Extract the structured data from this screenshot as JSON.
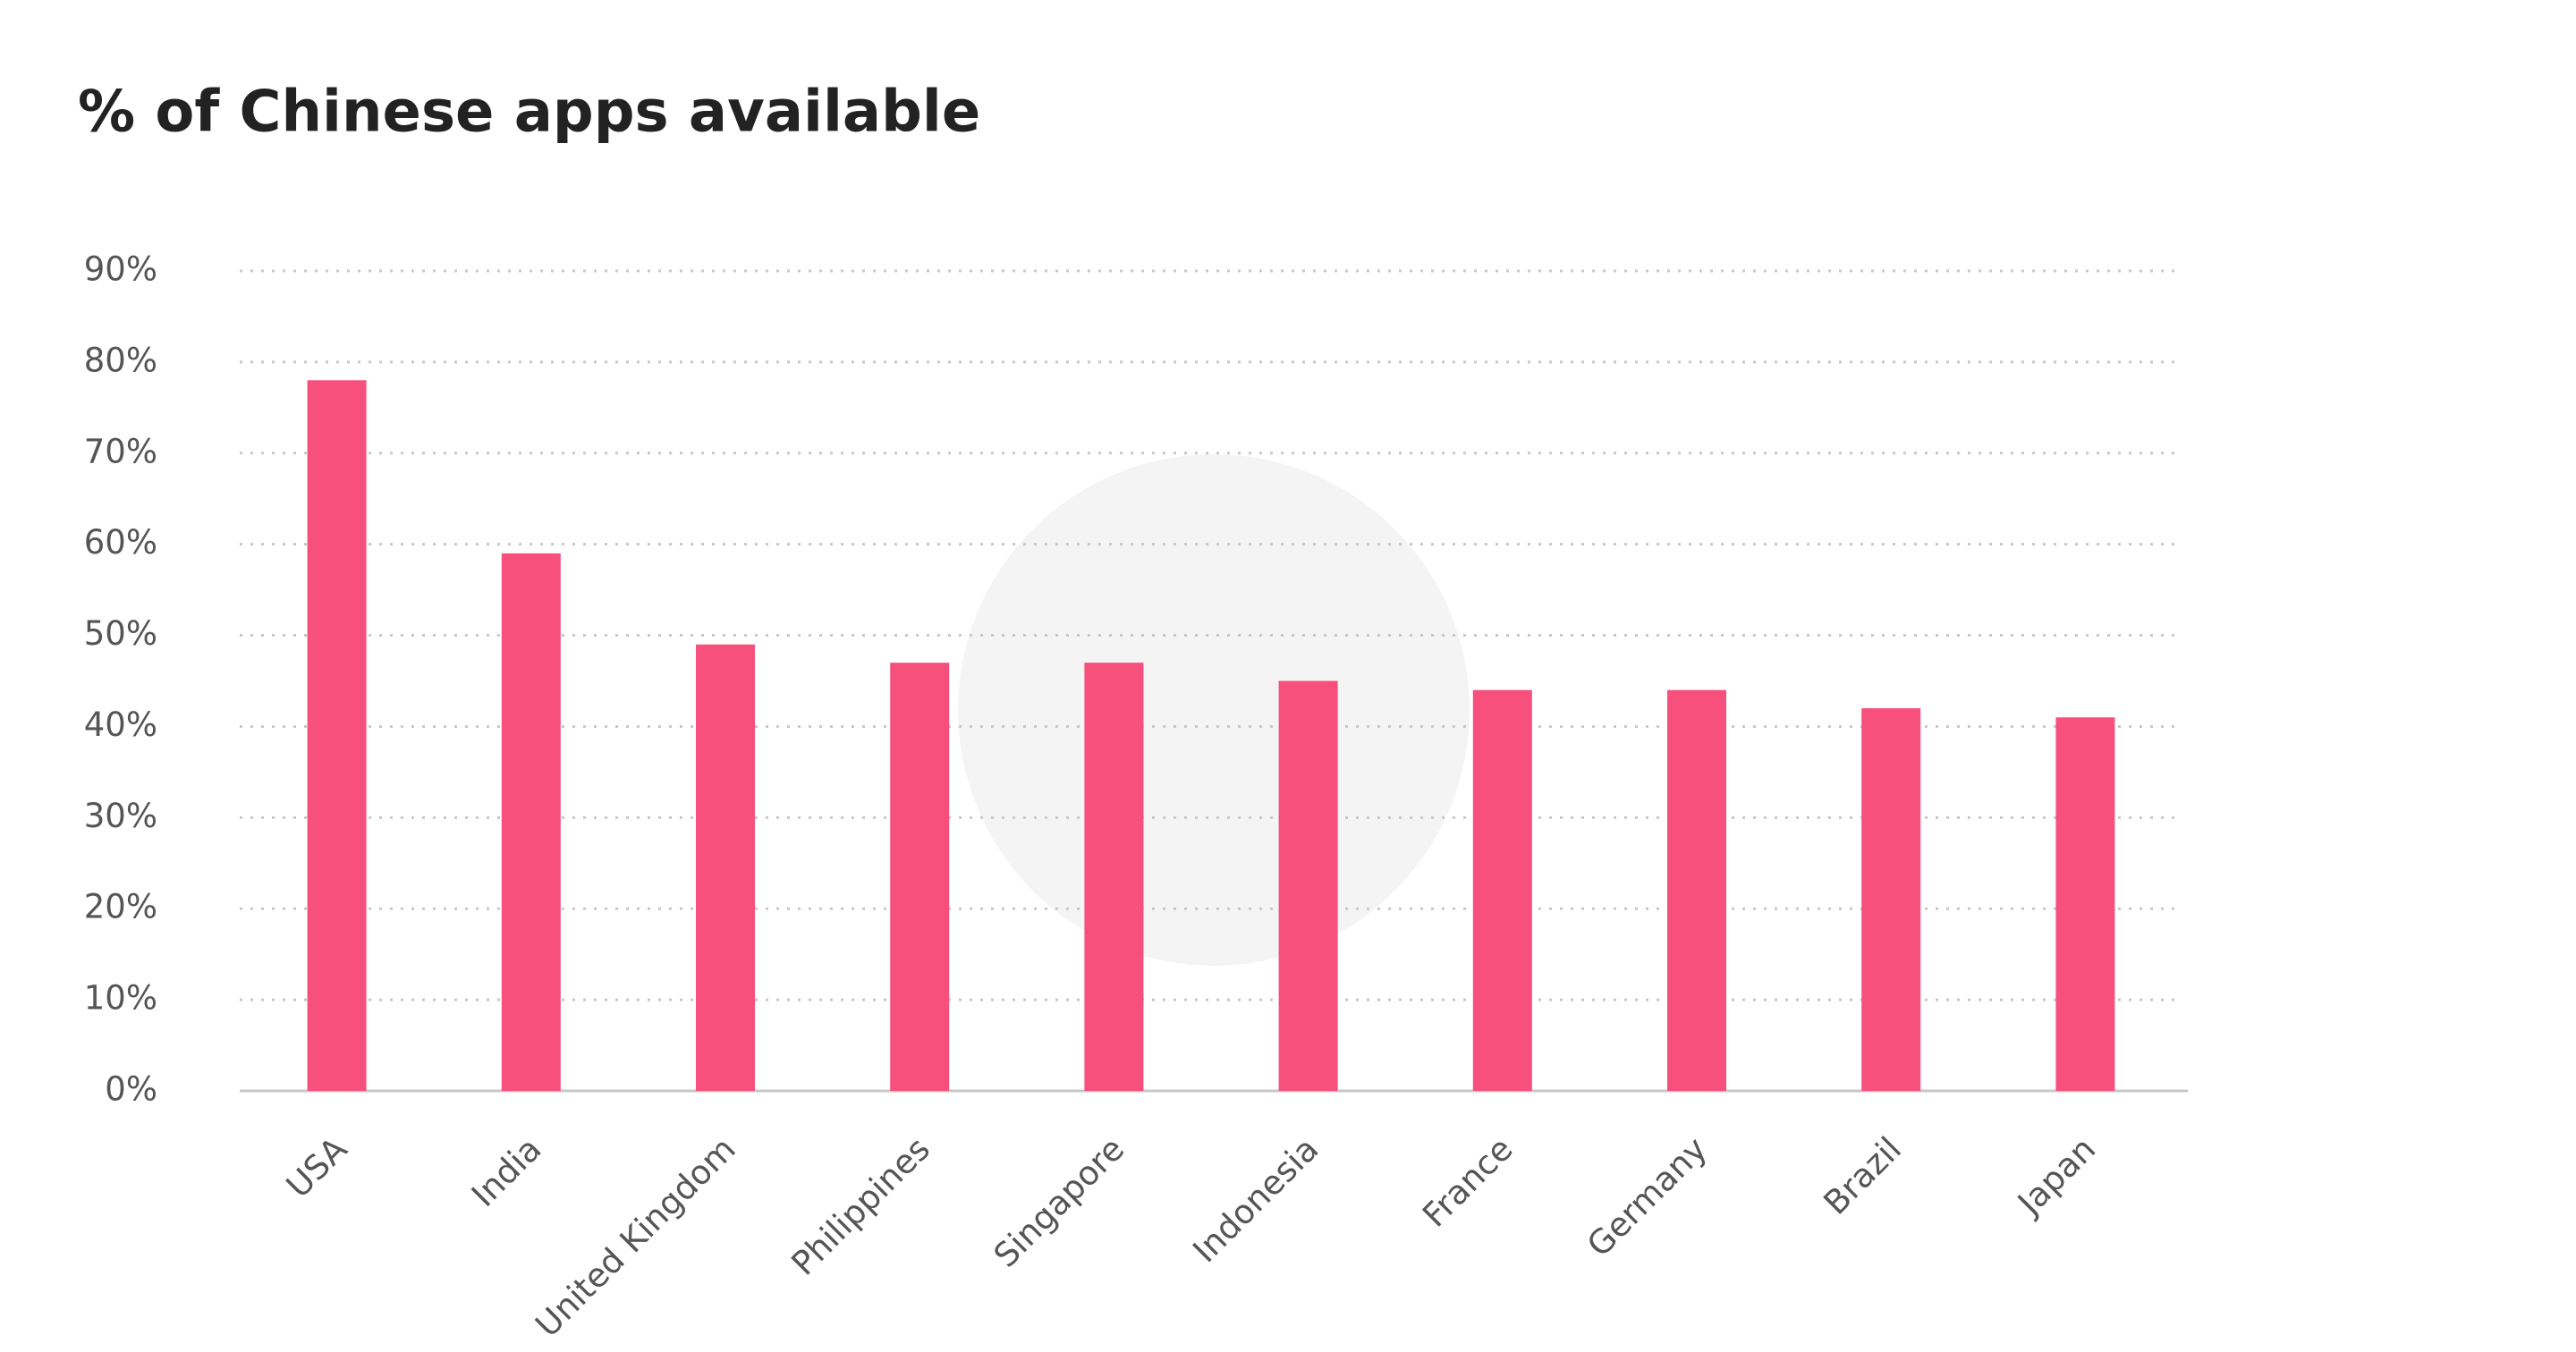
{
  "chart_data": {
    "type": "bar",
    "title": "% of Chinese apps available",
    "categories": [
      "USA",
      "India",
      "United Kingdom",
      "Philippines",
      "Singapore",
      "Indonesia",
      "France",
      "Germany",
      "Brazil",
      "Japan"
    ],
    "values": [
      78,
      59,
      49,
      47,
      47,
      45,
      44,
      44,
      42,
      41
    ],
    "color": "#f7507c",
    "ylim": [
      0,
      90
    ],
    "yticks": [
      {
        "value": 0,
        "label": "0%"
      },
      {
        "value": 10,
        "label": "10%"
      },
      {
        "value": 20,
        "label": "20%"
      },
      {
        "value": 30,
        "label": "30%"
      },
      {
        "value": 40,
        "label": "40%"
      },
      {
        "value": 50,
        "label": "50%"
      },
      {
        "value": 60,
        "label": "60%"
      },
      {
        "value": 70,
        "label": "70%"
      },
      {
        "value": 80,
        "label": "80%"
      },
      {
        "value": 90,
        "label": "90%"
      }
    ],
    "grid": true
  }
}
